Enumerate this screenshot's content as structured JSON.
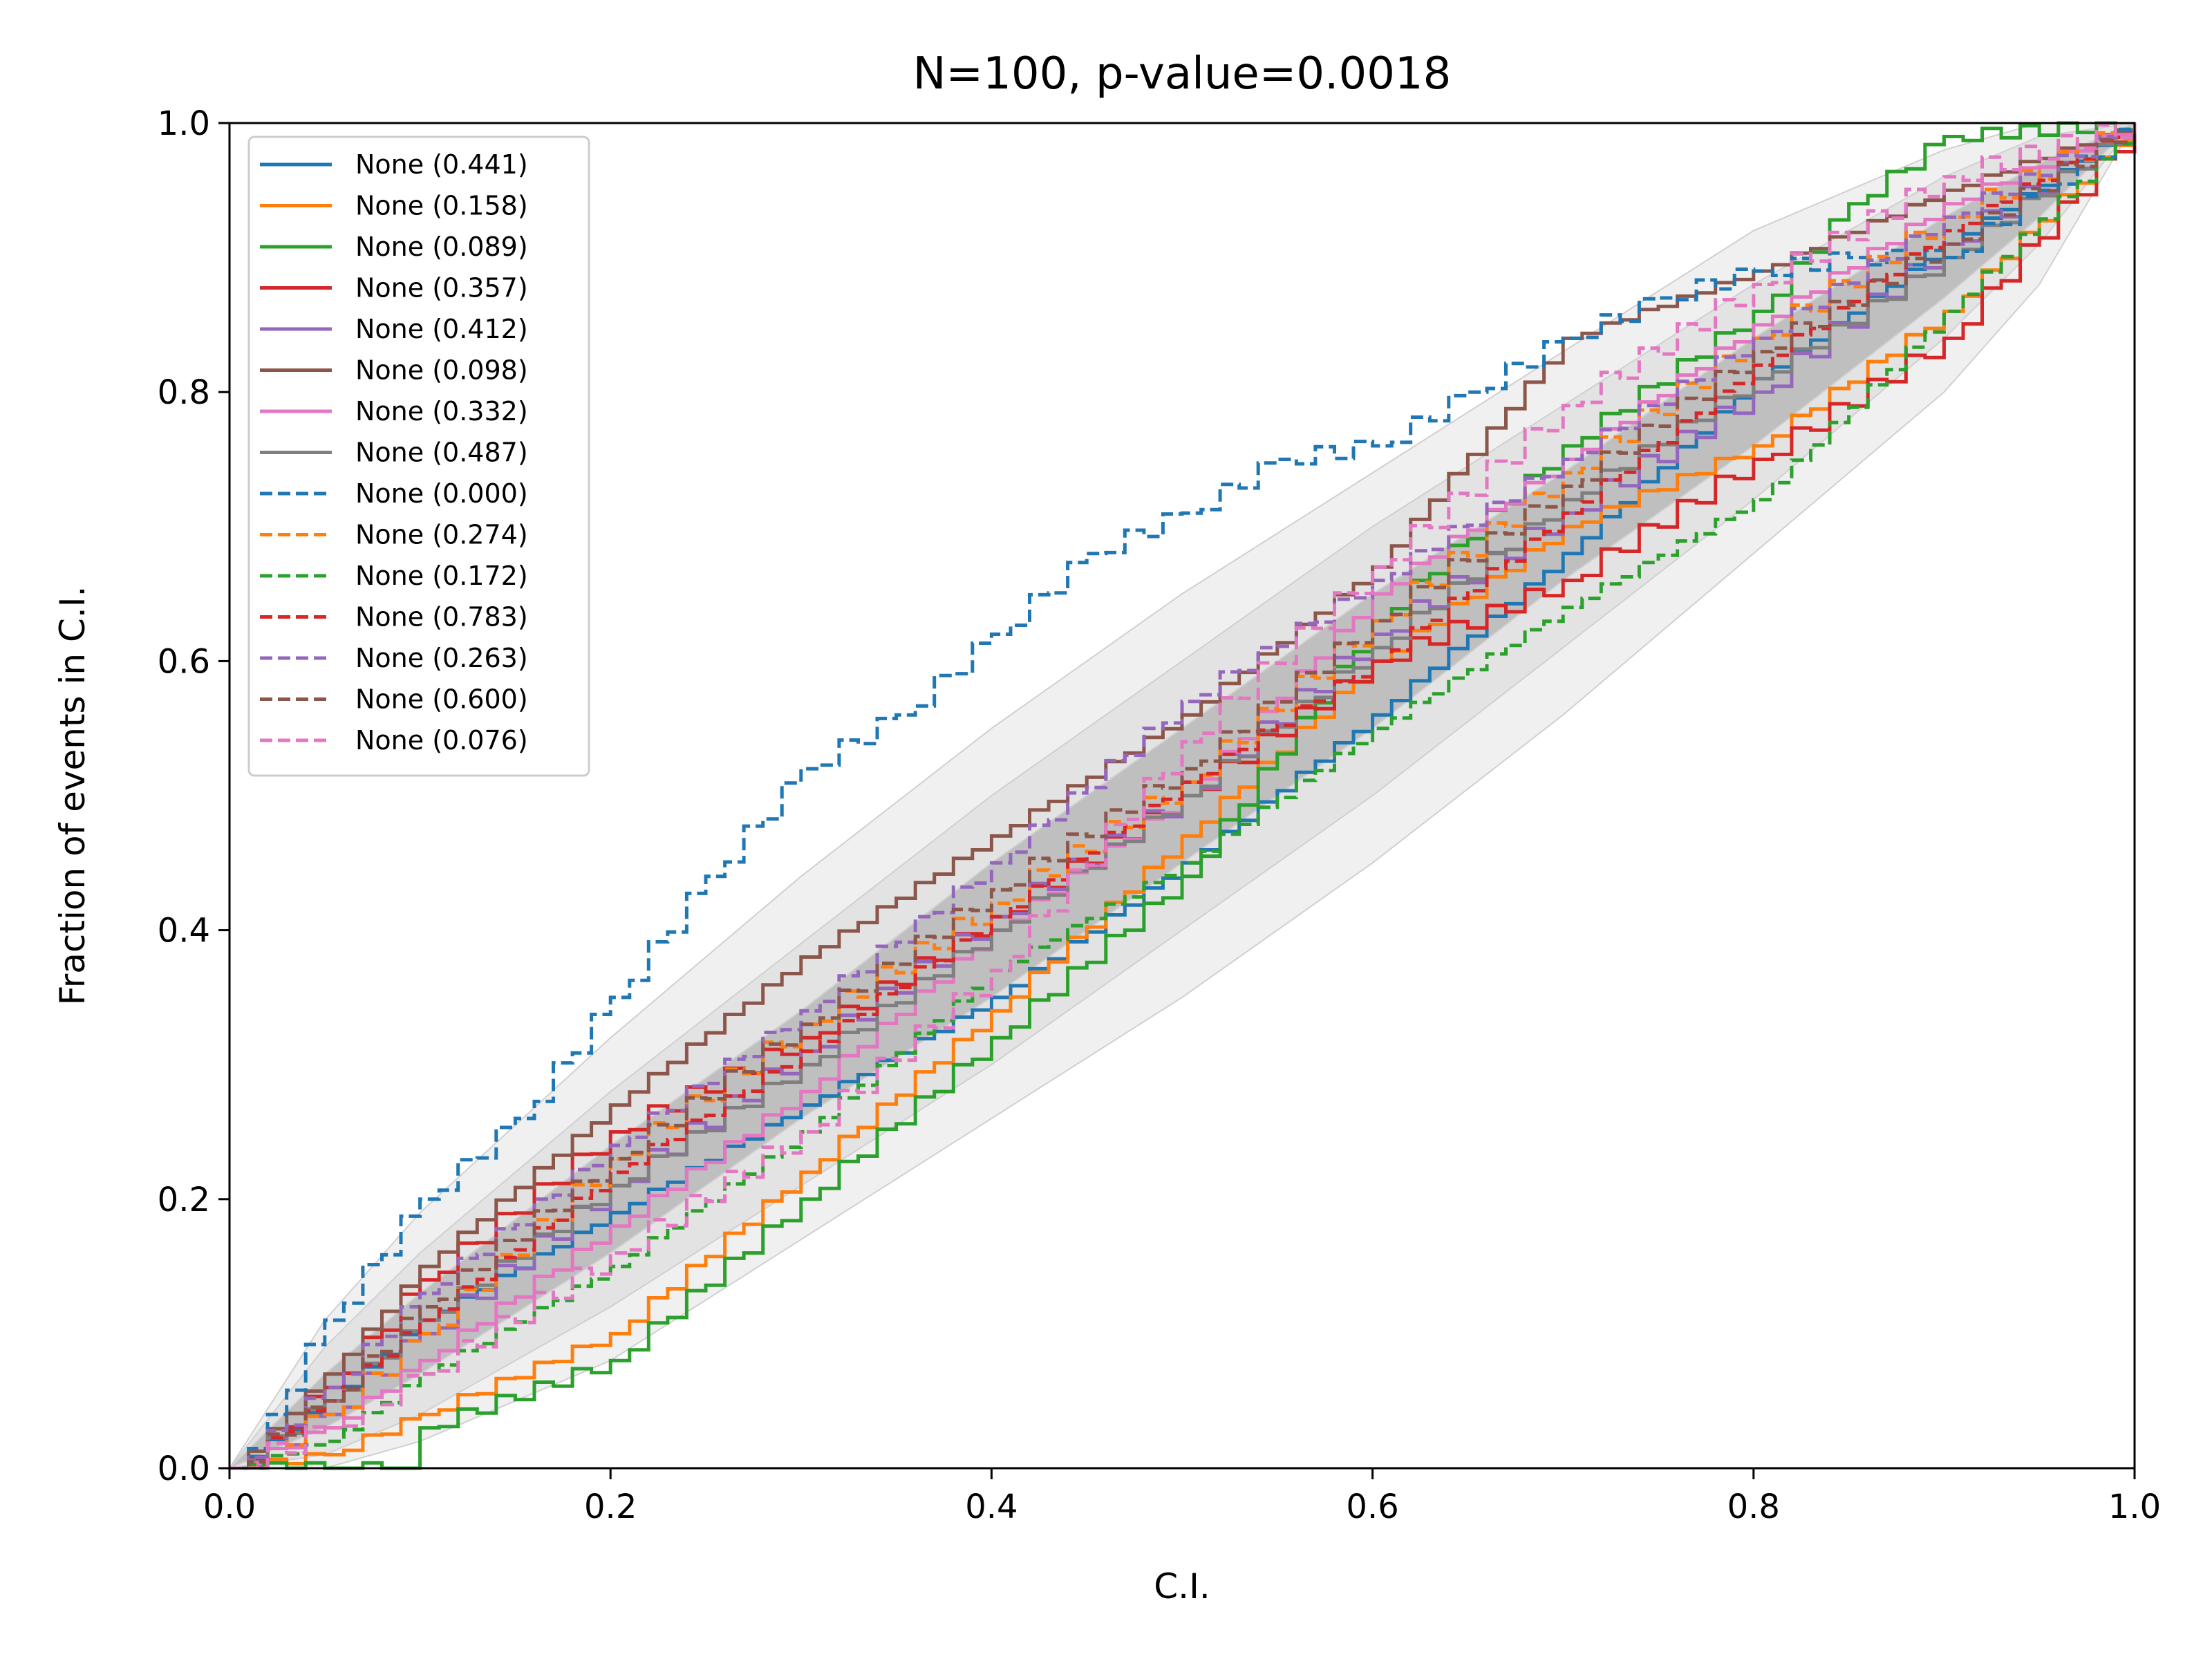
{
  "chart_data": {
    "type": "line",
    "title": "N=100, p-value=0.0018",
    "xlabel": "C.I.",
    "ylabel": "Fraction of events in C.I.",
    "xlim": [
      0,
      1
    ],
    "ylim": [
      0,
      1
    ],
    "xticks": [
      "0.0",
      "0.2",
      "0.4",
      "0.6",
      "0.8",
      "1.0"
    ],
    "yticks": [
      "0.0",
      "0.2",
      "0.4",
      "0.6",
      "0.8",
      "1.0"
    ],
    "grid": false,
    "legend_position": "top-left",
    "confidence_bands": [
      {
        "level": "1-sigma",
        "color": "#bfbfbf",
        "x": [
          0,
          0.05,
          0.1,
          0.2,
          0.3,
          0.4,
          0.5,
          0.6,
          0.7,
          0.8,
          0.9,
          0.95,
          1
        ],
        "lower": [
          0,
          0.03,
          0.07,
          0.16,
          0.26,
          0.35,
          0.45,
          0.55,
          0.66,
          0.76,
          0.87,
          0.93,
          1
        ],
        "upper": [
          0,
          0.07,
          0.13,
          0.24,
          0.34,
          0.45,
          0.55,
          0.65,
          0.74,
          0.84,
          0.93,
          0.97,
          1
        ]
      },
      {
        "level": "2-sigma",
        "color": "#e3e3e3",
        "x": [
          0,
          0.05,
          0.1,
          0.2,
          0.3,
          0.4,
          0.5,
          0.6,
          0.7,
          0.8,
          0.9,
          0.95,
          1
        ],
        "lower": [
          0,
          0.01,
          0.04,
          0.12,
          0.21,
          0.3,
          0.4,
          0.5,
          0.61,
          0.72,
          0.84,
          0.91,
          1
        ],
        "upper": [
          0,
          0.09,
          0.16,
          0.28,
          0.39,
          0.5,
          0.6,
          0.7,
          0.79,
          0.88,
          0.96,
          0.99,
          1
        ]
      },
      {
        "level": "3-sigma",
        "color": "#f0f0f0",
        "x": [
          0,
          0.05,
          0.1,
          0.2,
          0.3,
          0.4,
          0.5,
          0.6,
          0.7,
          0.8,
          0.9,
          0.95,
          1
        ],
        "lower": [
          0,
          0.0,
          0.02,
          0.08,
          0.17,
          0.26,
          0.35,
          0.45,
          0.56,
          0.68,
          0.8,
          0.88,
          1
        ],
        "upper": [
          0,
          0.11,
          0.19,
          0.32,
          0.44,
          0.55,
          0.65,
          0.74,
          0.83,
          0.92,
          0.98,
          1.0,
          1
        ]
      }
    ],
    "series": [
      {
        "name": "None (0.441)",
        "color": "#1f77b4",
        "dash": "solid",
        "x": [
          0,
          0.05,
          0.1,
          0.2,
          0.3,
          0.4,
          0.5,
          0.6,
          0.7,
          0.8,
          0.9,
          1
        ],
        "y": [
          0,
          0.05,
          0.11,
          0.19,
          0.27,
          0.35,
          0.45,
          0.56,
          0.68,
          0.81,
          0.91,
          1
        ]
      },
      {
        "name": "None (0.158)",
        "color": "#ff7f0e",
        "dash": "solid",
        "x": [
          0,
          0.05,
          0.1,
          0.2,
          0.3,
          0.4,
          0.5,
          0.6,
          0.7,
          0.8,
          0.9,
          1
        ],
        "y": [
          0,
          0.01,
          0.04,
          0.1,
          0.22,
          0.34,
          0.47,
          0.6,
          0.7,
          0.76,
          0.86,
          1
        ]
      },
      {
        "name": "None (0.089)",
        "color": "#2ca02c",
        "dash": "solid",
        "x": [
          0,
          0.05,
          0.09,
          0.1,
          0.2,
          0.3,
          0.4,
          0.5,
          0.6,
          0.7,
          0.8,
          0.85,
          0.9,
          1
        ],
        "y": [
          0,
          0,
          0,
          0.03,
          0.08,
          0.2,
          0.32,
          0.44,
          0.63,
          0.76,
          0.86,
          0.94,
          0.99,
          1
        ]
      },
      {
        "name": "None (0.357)",
        "color": "#d62728",
        "dash": "solid",
        "x": [
          0,
          0.05,
          0.1,
          0.2,
          0.3,
          0.4,
          0.5,
          0.6,
          0.7,
          0.8,
          0.9,
          1
        ],
        "y": [
          0,
          0.06,
          0.14,
          0.25,
          0.32,
          0.41,
          0.5,
          0.6,
          0.66,
          0.75,
          0.84,
          1
        ]
      },
      {
        "name": "None (0.412)",
        "color": "#9467bd",
        "dash": "solid",
        "x": [
          0,
          0.05,
          0.1,
          0.2,
          0.3,
          0.4,
          0.5,
          0.6,
          0.7,
          0.8,
          0.9,
          1
        ],
        "y": [
          0,
          0.04,
          0.1,
          0.21,
          0.31,
          0.41,
          0.5,
          0.62,
          0.71,
          0.8,
          0.91,
          1
        ]
      },
      {
        "name": "None (0.098)",
        "color": "#8c564b",
        "dash": "solid",
        "x": [
          0,
          0.05,
          0.1,
          0.2,
          0.3,
          0.4,
          0.5,
          0.6,
          0.7,
          0.8,
          0.9,
          1
        ],
        "y": [
          0,
          0.07,
          0.15,
          0.27,
          0.38,
          0.47,
          0.56,
          0.67,
          0.84,
          0.89,
          0.95,
          1
        ]
      },
      {
        "name": "None (0.332)",
        "color": "#e377c2",
        "dash": "solid",
        "x": [
          0,
          0.05,
          0.1,
          0.2,
          0.3,
          0.4,
          0.5,
          0.6,
          0.7,
          0.8,
          0.9,
          1
        ],
        "y": [
          0,
          0.03,
          0.08,
          0.18,
          0.28,
          0.4,
          0.5,
          0.65,
          0.75,
          0.85,
          0.94,
          1
        ]
      },
      {
        "name": "None (0.487)",
        "color": "#7f7f7f",
        "dash": "solid",
        "x": [
          0,
          0.05,
          0.1,
          0.2,
          0.3,
          0.4,
          0.5,
          0.6,
          0.7,
          0.8,
          0.9,
          1
        ],
        "y": [
          0,
          0.05,
          0.11,
          0.21,
          0.3,
          0.4,
          0.5,
          0.61,
          0.72,
          0.81,
          0.9,
          1
        ]
      },
      {
        "name": "None (0.000)",
        "color": "#1f77b4",
        "dash": "dashed",
        "x": [
          0,
          0.02,
          0.05,
          0.1,
          0.15,
          0.2,
          0.25,
          0.3,
          0.35,
          0.4,
          0.45,
          0.5,
          0.55,
          0.6,
          0.65,
          0.7,
          0.75,
          0.8,
          0.85,
          0.9,
          0.95,
          1
        ],
        "y": [
          0,
          0.04,
          0.11,
          0.2,
          0.26,
          0.35,
          0.44,
          0.52,
          0.56,
          0.62,
          0.68,
          0.71,
          0.75,
          0.76,
          0.8,
          0.84,
          0.87,
          0.89,
          0.9,
          0.9,
          0.95,
          1
        ]
      },
      {
        "name": "None (0.274)",
        "color": "#ff7f0e",
        "dash": "dashed",
        "x": [
          0,
          0.05,
          0.1,
          0.2,
          0.3,
          0.4,
          0.5,
          0.6,
          0.7,
          0.8,
          0.9,
          1
        ],
        "y": [
          0,
          0.04,
          0.1,
          0.23,
          0.33,
          0.42,
          0.51,
          0.63,
          0.74,
          0.84,
          0.93,
          1
        ]
      },
      {
        "name": "None (0.172)",
        "color": "#2ca02c",
        "dash": "dashed",
        "x": [
          0,
          0.05,
          0.1,
          0.2,
          0.3,
          0.4,
          0.5,
          0.6,
          0.7,
          0.8,
          0.9,
          1
        ],
        "y": [
          0,
          0.02,
          0.07,
          0.15,
          0.25,
          0.37,
          0.45,
          0.55,
          0.64,
          0.72,
          0.86,
          1
        ]
      },
      {
        "name": "None (0.783)",
        "color": "#d62728",
        "dash": "dashed",
        "x": [
          0,
          0.05,
          0.1,
          0.2,
          0.3,
          0.4,
          0.5,
          0.6,
          0.7,
          0.8,
          0.9,
          1
        ],
        "y": [
          0,
          0.05,
          0.11,
          0.22,
          0.31,
          0.41,
          0.51,
          0.6,
          0.71,
          0.82,
          0.92,
          1
        ]
      },
      {
        "name": "None (0.263)",
        "color": "#9467bd",
        "dash": "dashed",
        "x": [
          0,
          0.05,
          0.1,
          0.2,
          0.3,
          0.4,
          0.5,
          0.6,
          0.7,
          0.8,
          0.9,
          1
        ],
        "y": [
          0,
          0.06,
          0.13,
          0.24,
          0.34,
          0.45,
          0.57,
          0.66,
          0.75,
          0.84,
          0.93,
          1
        ]
      },
      {
        "name": "None (0.600)",
        "color": "#8c564b",
        "dash": "dashed",
        "x": [
          0,
          0.05,
          0.1,
          0.2,
          0.3,
          0.4,
          0.5,
          0.6,
          0.7,
          0.8,
          0.9,
          1
        ],
        "y": [
          0,
          0.05,
          0.12,
          0.23,
          0.33,
          0.43,
          0.52,
          0.63,
          0.73,
          0.83,
          0.91,
          1
        ]
      },
      {
        "name": "None (0.076)",
        "color": "#e377c2",
        "dash": "dashed",
        "x": [
          0,
          0.05,
          0.1,
          0.2,
          0.3,
          0.4,
          0.5,
          0.6,
          0.7,
          0.8,
          0.9,
          1
        ],
        "y": [
          0,
          0.03,
          0.07,
          0.16,
          0.25,
          0.37,
          0.54,
          0.67,
          0.79,
          0.88,
          0.96,
          1
        ]
      }
    ]
  }
}
